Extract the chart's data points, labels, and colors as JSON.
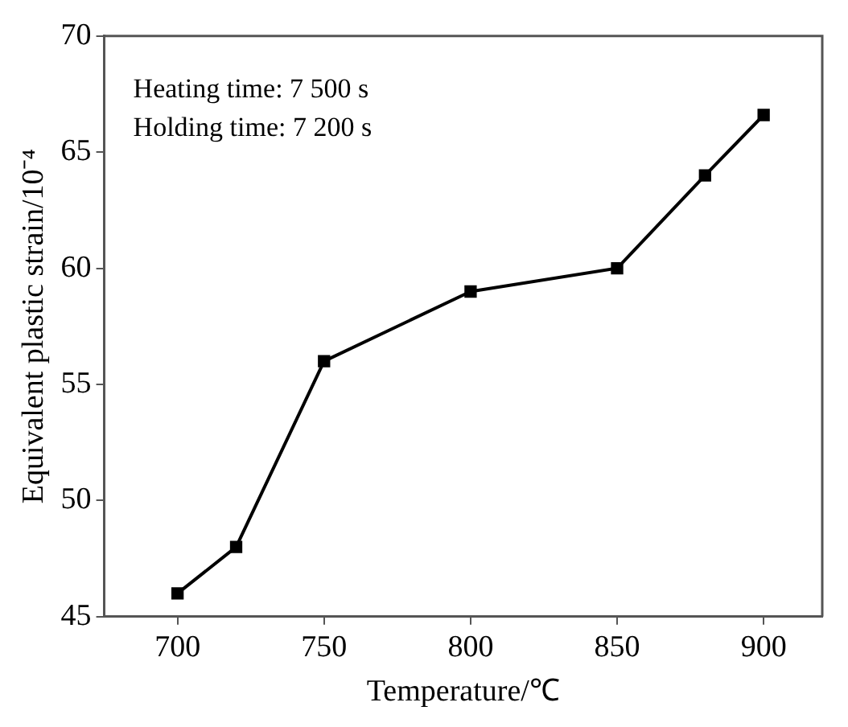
{
  "chart_data": {
    "type": "line",
    "xlabel": "Temperature/℃",
    "ylabel": "Equivalent plastic strain/10⁻⁴",
    "annotations": [
      "Heating time: 7 500 s",
      "Holding time: 7 200 s"
    ],
    "x": [
      700,
      720,
      750,
      800,
      850,
      880,
      900
    ],
    "series": [
      {
        "color": "#000000",
        "values": [
          46,
          48,
          56,
          59,
          60,
          64,
          66.6
        ]
      }
    ],
    "xlim": [
      675,
      920
    ],
    "xticks": [
      700,
      750,
      800,
      850,
      900
    ],
    "ylim": [
      45,
      70
    ],
    "yticks": [
      45,
      50,
      55,
      60,
      65,
      70
    ],
    "grid": false,
    "legend": false,
    "marker": "square",
    "line_style": "solid"
  }
}
